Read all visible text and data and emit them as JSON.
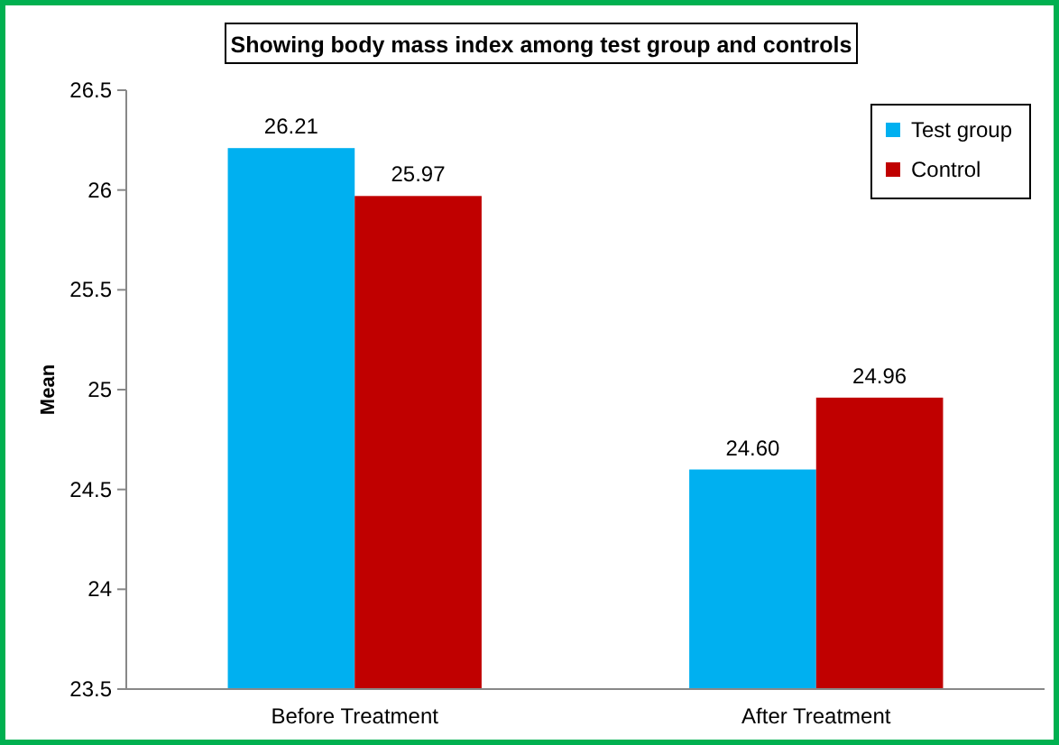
{
  "chart_data": {
    "type": "bar",
    "title": "Showing body mass index  among test group and controls",
    "ylabel": "Mean",
    "categories": [
      "Before Treatment",
      "After Treatment"
    ],
    "series": [
      {
        "name": "Test group",
        "color": "#00b0f0",
        "values": [
          26.21,
          24.6
        ],
        "value_labels": [
          "26.21",
          "24.60"
        ]
      },
      {
        "name": "Control",
        "color": "#c00000",
        "values": [
          25.97,
          24.96
        ],
        "value_labels": [
          "25.97",
          "24.96"
        ]
      }
    ],
    "ylim": [
      23.5,
      26.5
    ],
    "yticks": [
      23.5,
      24,
      24.5,
      25,
      25.5,
      26,
      26.5
    ],
    "grid": false,
    "legend": "top right"
  }
}
